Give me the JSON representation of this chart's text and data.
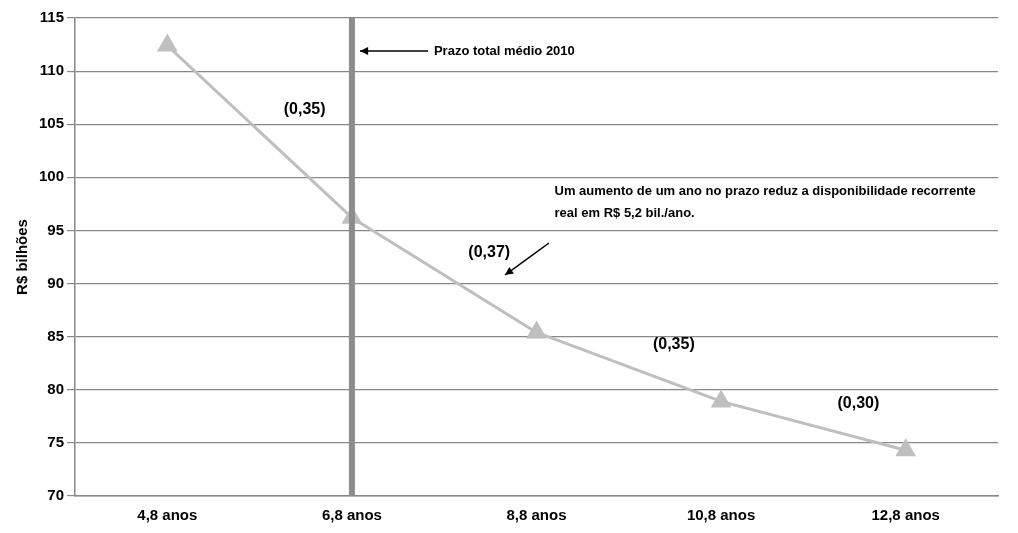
{
  "chart_data": {
    "type": "line",
    "ylabel": "R$ bilhões",
    "categories": [
      "4,8 anos",
      "6,8 anos",
      "8,8 anos",
      "10,8 anos",
      "12,8 anos"
    ],
    "series": [
      {
        "color": "#bfbfbf",
        "values": [
          112.4,
          96.2,
          85.4,
          78.9,
          74.3
        ]
      }
    ],
    "ylim": [
      70,
      115
    ],
    "yticks": [
      70,
      75,
      80,
      85,
      90,
      95,
      100,
      105,
      110,
      115
    ],
    "ref_lines": [
      {
        "axis": "x",
        "value": "6,8 anos",
        "label": "Prazo total médio 2010",
        "color": "#8c8c8c"
      }
    ],
    "annotations": [
      "(0,35)",
      "(0,37)",
      "(0,35)",
      "(0,30)",
      "Um aumento de um ano no prazo reduz a disponibilidade recorrente real em R$ 5,2 bil./ano."
    ],
    "grid": "y",
    "legend": false,
    "marker": "triangle",
    "line_style": "solid"
  }
}
